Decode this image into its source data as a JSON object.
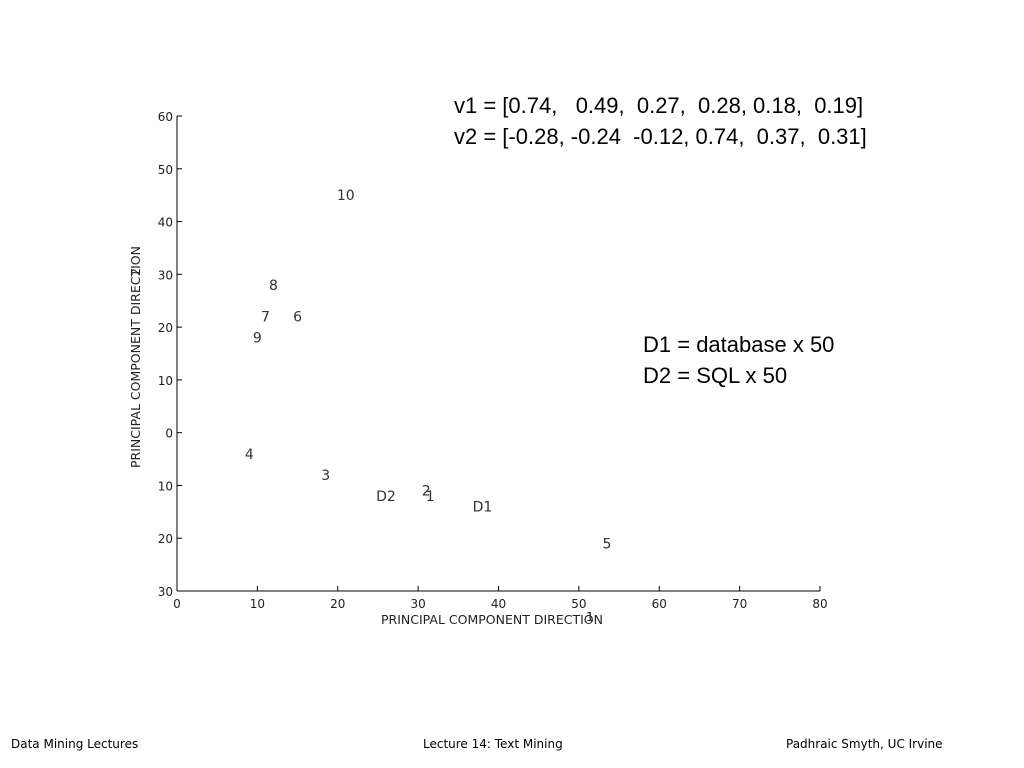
{
  "slide": {
    "vector_lines": [
      "v1 = [0.74,   0.49,  0.27,  0.28, 0.18,  0.19]",
      "v2 = [-0.28, -0.24  -0.12, 0.74,  0.37,  0.31]"
    ],
    "legend_lines": [
      "D1 = database x 50",
      "D2 = SQL x 50"
    ],
    "footer": {
      "left": "Data Mining Lectures",
      "center": "Lecture 14: Text Mining",
      "right": "Padhraic Smyth, UC Irvine"
    }
  },
  "chart_data": {
    "type": "scatter",
    "title": "",
    "xlabel": "PRINCIPAL COMPONENT DIRECTION",
    "xlabel_suffix": "1",
    "ylabel": "PRINCIPAL COMPONENT DIRECTION",
    "ylabel_suffix": "2",
    "xlim": [
      0,
      80
    ],
    "ylim": [
      -30,
      60
    ],
    "xticks": [
      0,
      10,
      20,
      30,
      40,
      50,
      60,
      70,
      80
    ],
    "yticks": [
      60,
      50,
      40,
      30,
      20,
      10,
      0,
      -10,
      -20,
      -30
    ],
    "ytick_labels": [
      "60",
      "50",
      "40",
      "30",
      "20",
      "10",
      "0",
      "10",
      "20",
      "30"
    ],
    "grid": false,
    "points": [
      {
        "label": "10",
        "x": 21,
        "y": 45
      },
      {
        "label": "8",
        "x": 12,
        "y": 28
      },
      {
        "label": "7",
        "x": 11,
        "y": 22
      },
      {
        "label": "6",
        "x": 15,
        "y": 22
      },
      {
        "label": "9",
        "x": 10,
        "y": 18
      },
      {
        "label": "4",
        "x": 9,
        "y": -4
      },
      {
        "label": "3",
        "x": 18.5,
        "y": -8
      },
      {
        "label": "D2",
        "x": 26,
        "y": -12
      },
      {
        "label": "2",
        "x": 31,
        "y": -11
      },
      {
        "label": "1",
        "x": 31.5,
        "y": -12
      },
      {
        "label": "D1",
        "x": 38,
        "y": -14
      },
      {
        "label": "5",
        "x": 53.5,
        "y": -21
      }
    ]
  }
}
